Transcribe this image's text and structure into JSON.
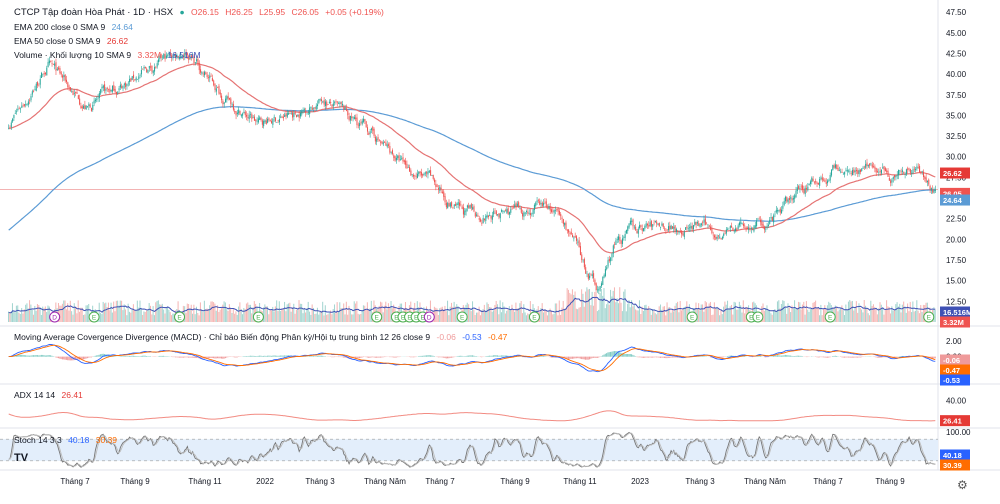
{
  "header": {
    "title": "CTCP Tập đoàn Hòa Phát · 1D · HSX",
    "ohlc": {
      "o": "O26.15",
      "h": "H26.25",
      "l": "L25.95",
      "c": "C26.05",
      "chg": "+0.05 (+0.19%)"
    }
  },
  "legends": {
    "ema200": {
      "label": "EMA 200 close 0 SMA 9",
      "value": "24.64"
    },
    "ema50": {
      "label": "EMA 50 close 0 SMA 9",
      "value": "26.62"
    },
    "volume": {
      "label": "Volume · Khối lượng 10 SMA 9",
      "v1": "3.32M",
      "v2": "16.516M"
    },
    "macd": {
      "label": "Moving Average Covergence Divergence (MACD) · Chỉ báo Biến động Phân kỳ/Hội tụ trung bình 12 26 close 9",
      "v1": "-0.06",
      "v2": "-0.53",
      "v3": "-0.47"
    },
    "adx": {
      "label": "ADX 14 14",
      "value": "26.41"
    },
    "stoch": {
      "label": "Stoch 14 3 3",
      "v1": "40.18",
      "v2": "30.39"
    }
  },
  "colors": {
    "up": "#26a69a",
    "down": "#ef5350",
    "ema200": "#5b9bd5",
    "ema50": "#e57373",
    "volSma": "#3f51b5",
    "macd": "#2962ff",
    "signal": "#ff6d00",
    "adx": "#f28b82",
    "stochK": "#9e9e9e",
    "stochD": "#bdbdbd",
    "stochBand": "#e3eefb"
  },
  "chart_data": {
    "type": "candlestick",
    "price_axis": {
      "ticks": [
        "47.50",
        "45.00",
        "42.50",
        "40.00",
        "37.50",
        "35.00",
        "32.50",
        "30.00",
        "27.50",
        "25.00",
        "22.50",
        "20.00",
        "17.50",
        "15.00",
        "12.50"
      ]
    },
    "price_labels": [
      {
        "value": "26.62",
        "color": "#e53935"
      },
      {
        "value": "26.05",
        "color": "#ef5350"
      },
      {
        "value": "24.64",
        "color": "#5b9bd5"
      }
    ],
    "volume_labels": [
      {
        "value": "16.516M",
        "color": "#3f51b5"
      },
      {
        "value": "3.32M",
        "color": "#ef5350"
      }
    ],
    "macd_axis": {
      "ticks": [
        "2.00",
        "0.00"
      ]
    },
    "macd_labels": [
      {
        "value": "-0.06",
        "color": "#ef9a9a"
      },
      {
        "value": "-0.47",
        "color": "#ff6d00"
      },
      {
        "value": "-0.53",
        "color": "#2962ff"
      }
    ],
    "adx_axis": {
      "ticks": [
        "40.00"
      ]
    },
    "adx_labels": [
      {
        "value": "26.41",
        "color": "#e53935"
      }
    ],
    "stoch_axis": {
      "ticks": [
        "100.00"
      ]
    },
    "stoch_labels": [
      {
        "value": "40.18",
        "color": "#2962ff"
      },
      {
        "value": "30.39",
        "color": "#ff6d00"
      }
    ],
    "time_axis": [
      "Tháng 7",
      "Tháng 9",
      "Tháng 11",
      "2022",
      "Tháng 3",
      "Tháng Năm",
      "Tháng 7",
      "Tháng 9",
      "Tháng 11",
      "2023",
      "Tháng 3",
      "Tháng Năm",
      "Tháng 7",
      "Tháng 9"
    ],
    "events": [
      {
        "index": 35,
        "label": "D",
        "kind": "dividend"
      },
      {
        "index": 65,
        "label": "E",
        "kind": "earnings"
      },
      {
        "index": 130,
        "label": "E",
        "kind": "earnings"
      },
      {
        "index": 190,
        "label": "E",
        "kind": "earnings"
      },
      {
        "index": 280,
        "label": "E",
        "kind": "earnings"
      },
      {
        "index": 295,
        "label": "E",
        "kind": "earnings"
      },
      {
        "index": 300,
        "label": "E",
        "kind": "earnings"
      },
      {
        "index": 305,
        "label": "E",
        "kind": "earnings"
      },
      {
        "index": 310,
        "label": "E",
        "kind": "earnings"
      },
      {
        "index": 315,
        "label": "E",
        "kind": "earnings"
      },
      {
        "index": 320,
        "label": "D",
        "kind": "dividend"
      },
      {
        "index": 345,
        "label": "E",
        "kind": "earnings"
      },
      {
        "index": 400,
        "label": "E",
        "kind": "earnings"
      },
      {
        "index": 520,
        "label": "E",
        "kind": "earnings"
      },
      {
        "index": 565,
        "label": "E",
        "kind": "earnings"
      },
      {
        "index": 570,
        "label": "E",
        "kind": "earnings"
      },
      {
        "index": 625,
        "label": "E",
        "kind": "earnings"
      },
      {
        "index": 700,
        "label": "E",
        "kind": "earnings"
      }
    ],
    "close_keys": [
      [
        0,
        34
      ],
      [
        30,
        41
      ],
      [
        60,
        36
      ],
      [
        100,
        40
      ],
      [
        135,
        43
      ],
      [
        150,
        40
      ],
      [
        165,
        37
      ],
      [
        190,
        34
      ],
      [
        215,
        35
      ],
      [
        240,
        37
      ],
      [
        255,
        35
      ],
      [
        275,
        33
      ],
      [
        300,
        29
      ],
      [
        320,
        27
      ],
      [
        345,
        23
      ],
      [
        375,
        23
      ],
      [
        410,
        24
      ],
      [
        425,
        21
      ],
      [
        440,
        16
      ],
      [
        450,
        14
      ],
      [
        460,
        19
      ],
      [
        475,
        21
      ],
      [
        500,
        22
      ],
      [
        540,
        21
      ],
      [
        580,
        22
      ],
      [
        610,
        27
      ],
      [
        630,
        28.5
      ],
      [
        650,
        29
      ],
      [
        670,
        28
      ],
      [
        690,
        29
      ],
      [
        705,
        26.05
      ]
    ]
  }
}
